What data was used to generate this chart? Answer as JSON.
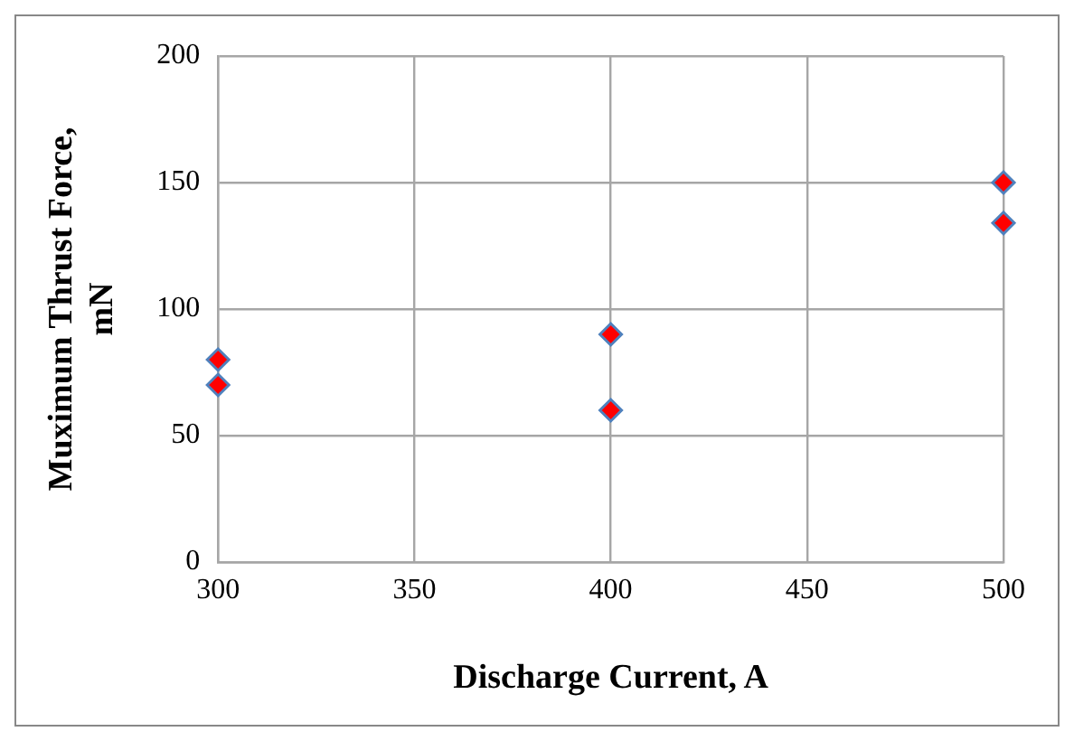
{
  "chart_data": {
    "type": "scatter",
    "xlabel": "Discharge Current, A",
    "ylabel": "Muximum Thrust Force, mN",
    "series": [
      {
        "color": "#ff0000",
        "x": [
          300,
          300,
          400,
          400,
          500,
          500
        ],
        "values": [
          80,
          70,
          90,
          60,
          150,
          134
        ]
      }
    ],
    "xlim": [
      300,
      500
    ],
    "xticks": [
      300,
      350,
      400,
      450,
      500
    ],
    "ylim": [
      0,
      200
    ],
    "yticks": [
      0,
      50,
      100,
      150,
      200
    ],
    "grid": true,
    "legend": false,
    "marker": "diamond"
  }
}
